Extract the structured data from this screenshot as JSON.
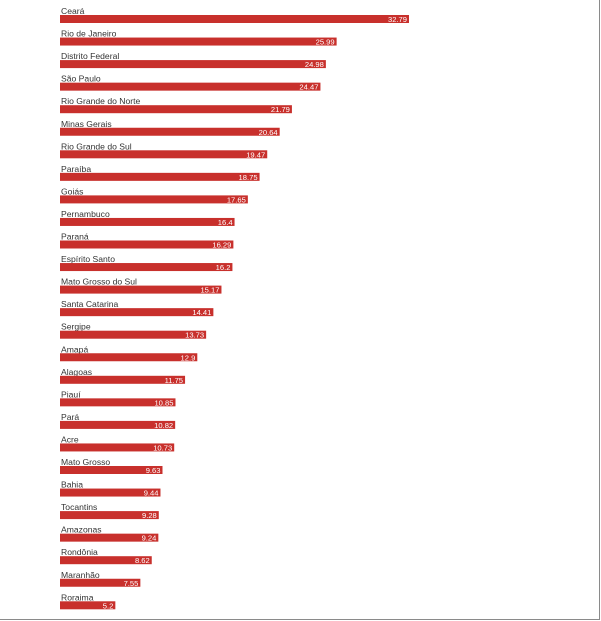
{
  "chart_data": {
    "type": "bar",
    "orientation": "horizontal",
    "categories": [
      "Ceará",
      "Rio de Janeiro",
      "Distrito Federal",
      "São Paulo",
      "Rio Grande do Norte",
      "Minas Gerais",
      "Rio Grande do Sul",
      "Paraíba",
      "Goiás",
      "Pernambuco",
      "Paraná",
      "Espírito Santo",
      "Mato Grosso do Sul",
      "Santa Catarina",
      "Sergipe",
      "Amapá",
      "Alagoas",
      "Piauí",
      "Pará",
      "Acre",
      "Mato Grosso",
      "Bahia",
      "Tocantins",
      "Amazonas",
      "Rondônia",
      "Maranhão",
      "Roraima"
    ],
    "values": [
      32.79,
      25.99,
      24.98,
      24.47,
      21.79,
      20.64,
      19.47,
      18.75,
      17.65,
      16.4,
      16.29,
      16.2,
      15.17,
      14.41,
      13.73,
      12.9,
      11.75,
      10.85,
      10.82,
      10.73,
      9.63,
      9.44,
      9.28,
      9.24,
      8.62,
      7.55,
      5.2
    ],
    "value_labels": [
      "32.79",
      "25.99",
      "24.98",
      "24.47",
      "21.79",
      "20.64",
      "19.47",
      "18.75",
      "17.65",
      "16.4",
      "16.29",
      "16.2",
      "15.17",
      "14.41",
      "13.73",
      "12.9",
      "11.75",
      "10.85",
      "10.82",
      "10.73",
      "9.63",
      "9.44",
      "9.28",
      "9.24",
      "8.62",
      "7.55",
      "5.2"
    ],
    "bar_color": "#c8302c",
    "title": "",
    "xlabel": "",
    "ylabel": "",
    "grid": false,
    "legend": "none"
  }
}
